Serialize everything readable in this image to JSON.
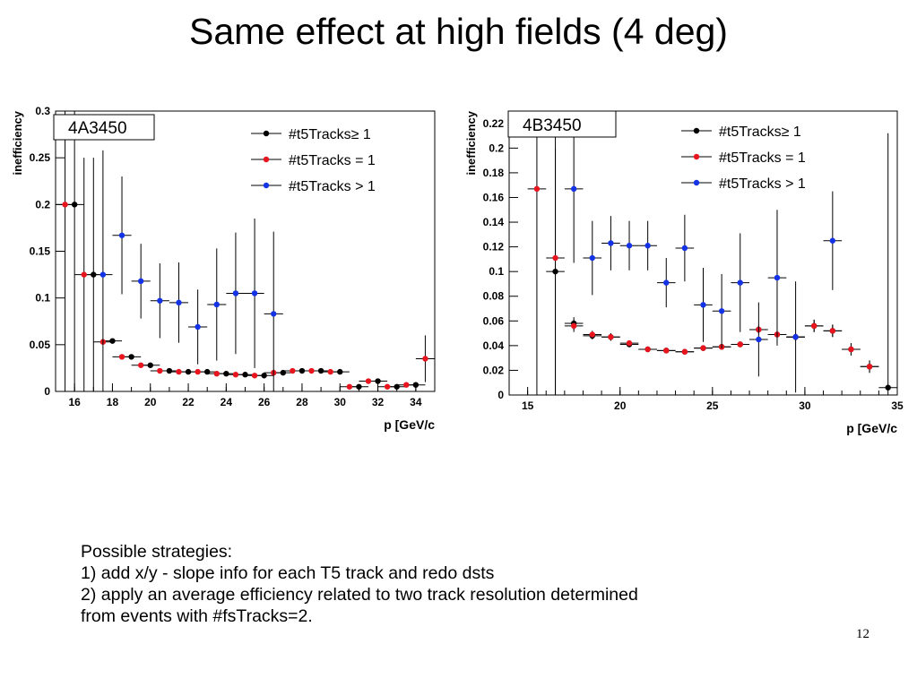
{
  "slide": {
    "title": "Same effect at high fields (4 deg)",
    "page_number": "12",
    "strategies": {
      "heading": "Possible strategies:",
      "items": [
        "1)  add x/y - slope info for each T5 track and redo dsts",
        "2) apply an average efficiency related to two track resolution determined",
        "from events with #fsTracks=2."
      ]
    }
  },
  "chart_data": [
    {
      "type": "scatter",
      "title": "4A3450",
      "xlabel": "p [GeV/c",
      "ylabel": "inefficiency",
      "xlim": [
        15,
        35
      ],
      "ylim": [
        0,
        0.3
      ],
      "xticks": [
        16,
        18,
        20,
        22,
        24,
        26,
        28,
        30,
        32,
        34
      ],
      "yticks": [
        0,
        0.05,
        0.1,
        0.15,
        0.2,
        0.25,
        0.3
      ],
      "grid": false,
      "legend_position": "top-right",
      "series": [
        {
          "name": "#t5Tracks≥ 1",
          "color": "#000000",
          "bin_width": 1,
          "x": [
            16,
            17,
            18,
            19,
            20,
            21,
            22,
            23,
            24,
            25,
            26,
            27,
            28,
            29,
            30,
            31,
            32,
            33,
            34
          ],
          "y": [
            0.2,
            0.125,
            0.054,
            0.037,
            0.028,
            0.022,
            0.021,
            0.021,
            0.019,
            0.018,
            0.017,
            0.02,
            0.022,
            0.022,
            0.021,
            0.005,
            0.011,
            0.005,
            0.007
          ],
          "yerr": [
            0.2,
            0.125,
            0.0,
            0.0,
            0.0,
            0.0,
            0.0,
            0.0,
            0.0,
            0.0,
            0.0,
            0.0,
            0.0,
            0.0,
            0.0,
            0.0,
            0.0,
            0.0,
            0.0
          ]
        },
        {
          "name": "#t5Tracks = 1",
          "color": "#e8141e",
          "bin_width": 1,
          "x": [
            15.5,
            16.5,
            17.5,
            18.5,
            19.5,
            20.5,
            21.5,
            22.5,
            23.5,
            24.5,
            25.5,
            26.5,
            27.5,
            28.5,
            29.5,
            30.5,
            31.5,
            32.5,
            33.5,
            34.5
          ],
          "y": [
            0.2,
            0.125,
            0.053,
            0.037,
            0.028,
            0.022,
            0.021,
            0.021,
            0.019,
            0.018,
            0.017,
            0.02,
            0.022,
            0.022,
            0.021,
            0.005,
            0.011,
            0.005,
            0.007,
            0.035
          ],
          "yerr": [
            0.2,
            0.125,
            0.0,
            0.0,
            0.0,
            0.0,
            0.0,
            0.0,
            0.0,
            0.0,
            0.0,
            0.0,
            0.0,
            0.0,
            0.0,
            0.0,
            0.0,
            0.0,
            0.0,
            0.025
          ]
        },
        {
          "name": "#t5Tracks > 1",
          "color": "#1432e6",
          "bin_width": 1,
          "x": [
            17.5,
            18.5,
            19.5,
            20.5,
            21.5,
            22.5,
            23.5,
            24.5,
            25.5,
            26.5
          ],
          "y": [
            0.125,
            0.167,
            0.118,
            0.097,
            0.095,
            0.069,
            0.093,
            0.105,
            0.105,
            0.083
          ],
          "yerr": [
            0.133,
            0.063,
            0.04,
            0.04,
            0.043,
            0.04,
            0.06,
            0.065,
            0.08,
            0.088
          ]
        }
      ]
    },
    {
      "type": "scatter",
      "title": "4B3450",
      "xlabel": "p [GeV/c",
      "ylabel": "inefficiency",
      "xlim": [
        14,
        35
      ],
      "ylim": [
        0,
        0.23
      ],
      "xticks": [
        15,
        20,
        25,
        30,
        35
      ],
      "yticks": [
        0,
        0.02,
        0.04,
        0.06,
        0.08,
        0.1,
        0.12,
        0.14,
        0.16,
        0.18,
        0.2,
        0.22
      ],
      "grid": false,
      "legend_position": "top-right",
      "series": [
        {
          "name": "#t5Tracks≥ 1",
          "color": "#000000",
          "bin_width": 1,
          "x": [
            16.5,
            17.5,
            18.5,
            19.5,
            20.5,
            21.5,
            22.5,
            23.5,
            24.5,
            25.5,
            26.5,
            27.5,
            28.5,
            29.5,
            30.5,
            31.5,
            32.5,
            33.5,
            34.5
          ],
          "y": [
            0.1,
            0.058,
            0.048,
            0.047,
            0.041,
            0.037,
            0.036,
            0.035,
            0.038,
            0.039,
            0.041,
            0.053,
            0.049,
            0.047,
            0.056,
            0.052,
            0.037,
            0.023,
            0.006
          ],
          "yerr": [
            0.1,
            0.005,
            0.003,
            0.003,
            0.002,
            0.002,
            0.002,
            0.002,
            0.002,
            0.002,
            0.002,
            0.003,
            0.003,
            0.003,
            0.005,
            0.005,
            0.005,
            0.005,
            0.206
          ]
        },
        {
          "name": "#t5Tracks = 1",
          "color": "#e8141e",
          "bin_width": 1,
          "x": [
            15.5,
            16.5,
            17.5,
            18.5,
            19.5,
            20.5,
            21.5,
            22.5,
            23.5,
            24.5,
            25.5,
            26.5,
            27.5,
            28.5,
            29.5,
            30.5,
            31.5,
            32.5,
            33.5
          ],
          "y": [
            0.167,
            0.111,
            0.056,
            0.049,
            0.047,
            0.042,
            0.037,
            0.036,
            0.035,
            0.038,
            0.039,
            0.041,
            0.053,
            0.049,
            0.047,
            0.056,
            0.052,
            0.037,
            0.023
          ],
          "yerr": [
            0.167,
            0.111,
            0.005,
            0.003,
            0.003,
            0.002,
            0.002,
            0.002,
            0.002,
            0.002,
            0.002,
            0.002,
            0.003,
            0.003,
            0.003,
            0.005,
            0.005,
            0.005,
            0.005
          ]
        },
        {
          "name": "#t5Tracks > 1",
          "color": "#1432e6",
          "bin_width": 1,
          "x": [
            17.5,
            18.5,
            19.5,
            20.5,
            21.5,
            22.5,
            23.5,
            24.5,
            25.5,
            26.5,
            27.5,
            28.5,
            29.5,
            31.5
          ],
          "y": [
            0.167,
            0.111,
            0.123,
            0.121,
            0.121,
            0.091,
            0.119,
            0.073,
            0.068,
            0.091,
            0.045,
            0.095,
            0.047,
            0.125
          ],
          "yerr": [
            0.06,
            0.03,
            0.022,
            0.02,
            0.02,
            0.02,
            0.027,
            0.03,
            0.03,
            0.04,
            0.03,
            0.055,
            0.045,
            0.04
          ]
        }
      ]
    }
  ]
}
